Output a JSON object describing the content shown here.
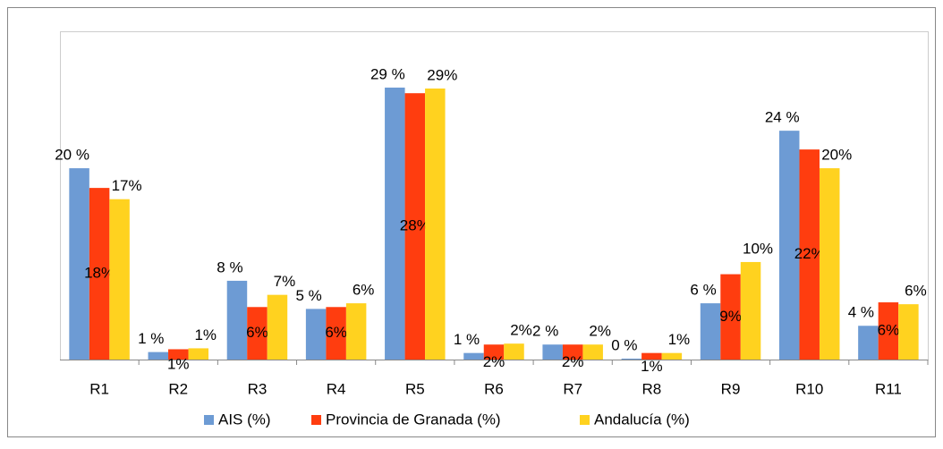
{
  "chart_data": {
    "type": "bar",
    "categories": [
      "R1",
      "R2",
      "R3",
      "R4",
      "R5",
      "R6",
      "R7",
      "R8",
      "R9",
      "R10",
      "R11"
    ],
    "series": [
      {
        "name": "AIS (%)",
        "color": "#6d9bd4",
        "values": [
          20.4,
          0.8,
          8.4,
          5.4,
          29,
          0.7,
          1.6,
          0.1,
          6.0,
          24.4,
          3.6
        ],
        "value_labels": [
          "20 %",
          "1 %",
          "8 %",
          "5 %",
          "29 %",
          "1 %",
          "2 %",
          "0 %",
          "6 %",
          "24 %",
          "4 %"
        ]
      },
      {
        "name": "Provincia de Granada  (%)",
        "color": "#ff3d0f",
        "values": [
          18.3,
          1.1,
          5.6,
          5.6,
          28.4,
          1.6,
          1.6,
          0.7,
          9.1,
          22.4,
          6.1
        ],
        "value_labels": [
          "18%",
          "1%",
          "6%",
          "6%",
          "28%",
          "2%",
          "2%",
          "1%",
          "9%",
          "22%",
          "6%"
        ]
      },
      {
        "name": "Andalucía  (%)",
        "color": "#ffd21f",
        "values": [
          17.1,
          1.2,
          6.9,
          6.0,
          28.9,
          1.7,
          1.6,
          0.7,
          10.4,
          20.4,
          5.9
        ],
        "value_labels": [
          "17%",
          "1%",
          "7%",
          "6%",
          "29%",
          "2%",
          "2%",
          "1%",
          "10%",
          "20%",
          "6%"
        ]
      }
    ],
    "ylim": [
      0,
      35
    ],
    "legend": "bottom"
  }
}
